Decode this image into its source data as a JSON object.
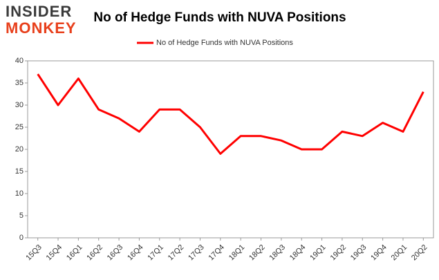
{
  "logo": {
    "top": "INSIDER",
    "bottom": "MONKEY"
  },
  "chart_data": {
    "type": "line",
    "title": "No of Hedge Funds with NUVA Positions",
    "categories": [
      "15Q3",
      "15Q4",
      "16Q1",
      "16Q2",
      "16Q3",
      "16Q4",
      "17Q1",
      "17Q2",
      "17Q3",
      "17Q4",
      "18Q1",
      "18Q2",
      "18Q3",
      "18Q4",
      "19Q1",
      "19Q2",
      "19Q3",
      "19Q4",
      "20Q1",
      "20Q2"
    ],
    "series": [
      {
        "name": "No of Hedge Funds with NUVA Positions",
        "color": "#ff0000",
        "values": [
          37,
          30,
          36,
          29,
          27,
          24,
          29,
          29,
          25,
          19,
          23,
          23,
          22,
          20,
          20,
          24,
          23,
          26,
          24,
          33
        ]
      }
    ],
    "ylim": [
      0,
      40
    ],
    "yticks": [
      0,
      5,
      10,
      15,
      20,
      25,
      30,
      35,
      40
    ],
    "grid": false,
    "legend": "top"
  }
}
